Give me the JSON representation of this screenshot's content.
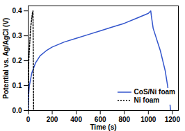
{
  "chart_data": {
    "type": "line",
    "xlabel": "Time (s)",
    "ylabel": "Potential vs. Ag/AgCl (V)",
    "xlim": [
      0,
      1250
    ],
    "ylim": [
      0,
      0.42
    ],
    "xticks": [
      0,
      200,
      400,
      600,
      800,
      1000,
      1200
    ],
    "yticks": [
      {
        "value": 0,
        "label": "0.0"
      },
      0.1,
      0.2,
      0.3,
      0.4
    ],
    "legend": "lower right",
    "series": [
      {
        "name": "CoS/Ni foam",
        "color": "#3355cc",
        "line_style": "solid",
        "x": [
          0,
          3,
          10,
          30,
          60,
          100,
          150,
          200,
          300,
          400,
          500,
          600,
          700,
          800,
          900,
          1000,
          1020,
          1025,
          1040,
          1060,
          1080,
          1100,
          1120,
          1140,
          1160,
          1175,
          1185
        ],
        "values": [
          0,
          0.06,
          0.1,
          0.15,
          0.19,
          0.22,
          0.24,
          0.255,
          0.275,
          0.29,
          0.305,
          0.32,
          0.335,
          0.35,
          0.37,
          0.39,
          0.4,
          0.38,
          0.33,
          0.3,
          0.27,
          0.24,
          0.2,
          0.16,
          0.1,
          0.05,
          0
        ]
      },
      {
        "name": "Ni foam",
        "color": "#000000",
        "line_style": "dotted",
        "x": [
          0,
          5,
          20,
          35,
          40,
          45
        ],
        "values": [
          0,
          0.2,
          0.33,
          0.39,
          0.4,
          0
        ]
      }
    ]
  }
}
